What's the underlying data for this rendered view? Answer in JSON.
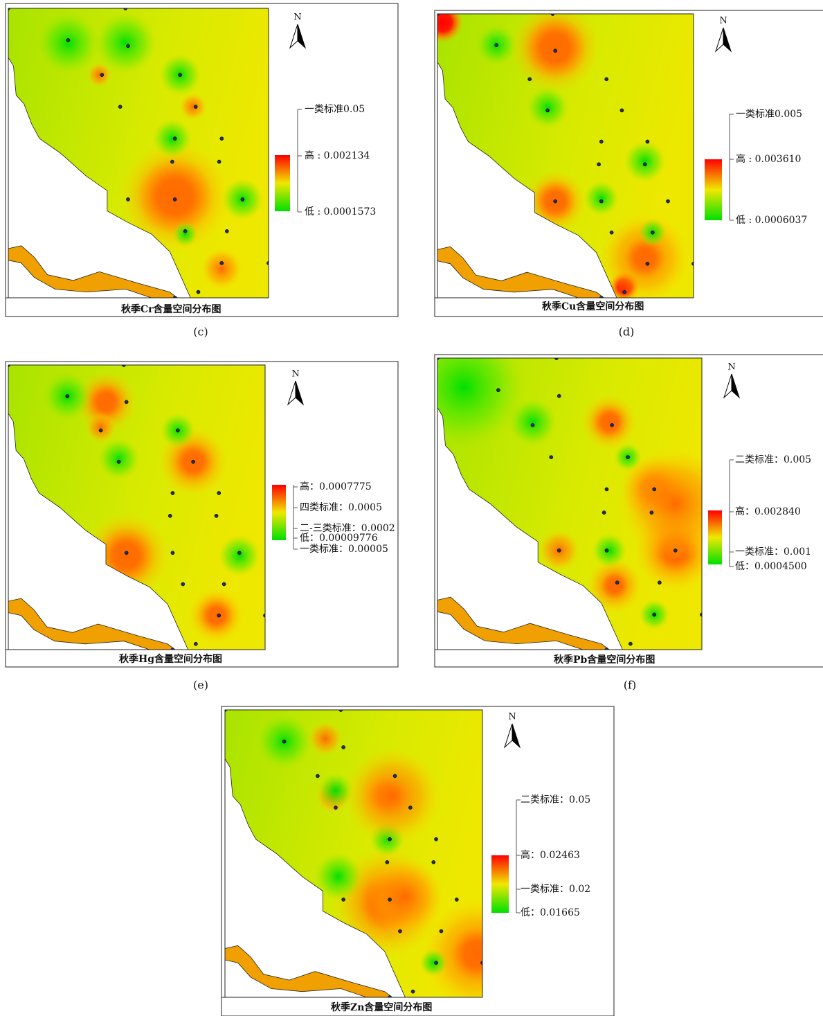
{
  "panels": [
    {
      "caption": "(c)",
      "title": "秋季Cr含量空间分布图",
      "north": "N",
      "legend": [
        "一类标准0.05",
        "高 : 0.002134",
        "低 : 0.0001573"
      ]
    },
    {
      "caption": "(d)",
      "title": "秋季Cu含量空间分布图",
      "north": "N",
      "legend": [
        "一类标准0.005",
        "高 : 0.003610",
        "低 : 0.0006037"
      ]
    },
    {
      "caption": "(e)",
      "title": "秋季Hg含量空间分布图",
      "north": "N",
      "legend": [
        "高：0.0007775",
        "四类标准：0.0005",
        "二-三类标准：0.0002",
        "低：0.00009776",
        "一类标准：0.00005"
      ]
    },
    {
      "caption": "(f)",
      "title": "秋季Pb含量空间分布图",
      "north": "N",
      "legend": [
        "二类标准：0.005",
        "高：0.002840",
        "一类标准：0.001",
        "低：0.0004500"
      ]
    },
    {
      "title": "秋季Zn含量空间分布图",
      "north": "N",
      "legend": [
        "二类标准：0.05",
        "高：0.02463",
        "一类标准：0.02",
        "低：0.01665"
      ]
    }
  ]
}
